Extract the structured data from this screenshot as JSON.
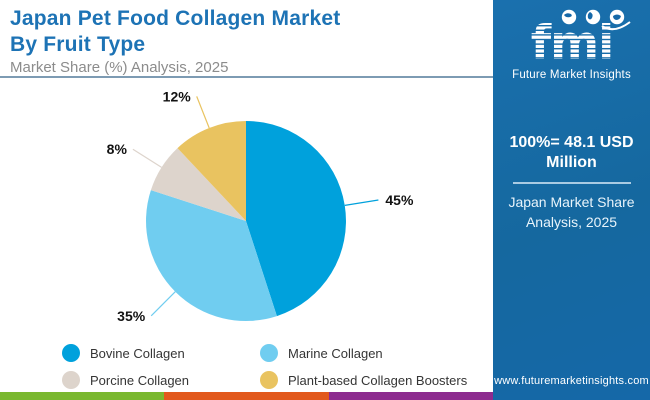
{
  "header": {
    "title_line1": "Japan Pet Food Collagen Market",
    "title_line2": "By Fruit Type",
    "subtitle": "Market Share (%) Analysis, 2025"
  },
  "chart_data": {
    "type": "pie",
    "title": "Japan Pet Food Collagen Market By Fruit Type",
    "subtitle": "Market Share (%) Analysis, 2025",
    "unit": "%",
    "start_angle_deg": 0,
    "direction": "clockwise",
    "segments": [
      {
        "label": "Bovine Collagen",
        "value": 45,
        "display": "45%",
        "color": "#00a1dc"
      },
      {
        "label": "Marine Collagen",
        "value": 35,
        "display": "35%",
        "color": "#70cdf0"
      },
      {
        "label": "Porcine Collagen",
        "value": 8,
        "display": "8%",
        "color": "#ddd4cc"
      },
      {
        "label": "Plant-based Collagen Boosters",
        "value": 12,
        "display": "12%",
        "color": "#e9c360"
      }
    ]
  },
  "sidebar": {
    "logo": {
      "text": "fmi",
      "tagline": "Future Market Insights"
    },
    "stat": {
      "line1": "100%= 48.1 USD",
      "line2": "Million"
    },
    "caption": {
      "line1": "Japan Market Share",
      "line2": "Analysis, 2025"
    },
    "website": "www.futuremarketinsights.com"
  },
  "footer": {
    "stripe_colors": [
      "#7ab82f",
      "#e2591d",
      "#8d2b8f"
    ]
  },
  "theme": {
    "title_color": "#1d73b5",
    "sidebar_color": "#1568a8",
    "header_rule_color": "#7d9bb3"
  }
}
